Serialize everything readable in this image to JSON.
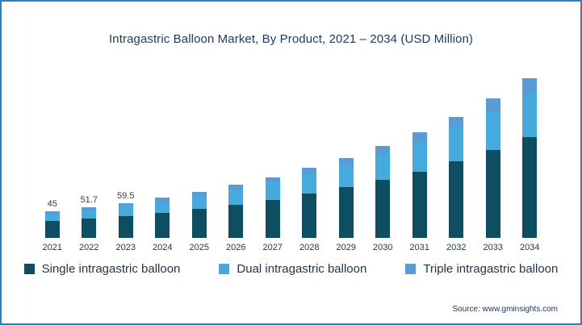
{
  "title": "Intragastric Balloon Market, By Product, 2021 – 2034 (USD Million)",
  "source": "Source: www.gminsights.com",
  "frame": {
    "border_color": "#2a83b8",
    "background": "#ffffff"
  },
  "chart_data": {
    "type": "bar",
    "stacked": true,
    "title": "Intragastric Balloon Market, By Product, 2021 – 2034 (USD Million)",
    "xlabel": "",
    "ylabel": "USD Million",
    "ylim": [
      0,
      280
    ],
    "grid": false,
    "legend_position": "bottom",
    "categories": [
      "2021",
      "2022",
      "2023",
      "2024",
      "2025",
      "2026",
      "2027",
      "2028",
      "2029",
      "2030",
      "2031",
      "2032",
      "2033",
      "2034"
    ],
    "totals": [
      45,
      51.7,
      59.5,
      68.3,
      78.4,
      90.0,
      103.3,
      118.6,
      136.1,
      156.2,
      179.3,
      205.8,
      236.2,
      271.1
    ],
    "data_labels": {
      "2021": "45",
      "2022": "51.7",
      "2023": "59.5"
    },
    "series": [
      {
        "key": "single",
        "name": "Single intragastric balloon",
        "color": "#0d4e63",
        "values": [
          28.4,
          32.6,
          37.5,
          43.0,
          49.4,
          56.7,
          65.1,
          74.7,
          85.7,
          98.4,
          113.0,
          129.7,
          148.8,
          170.8
        ]
      },
      {
        "key": "dual",
        "name": "Dual intragastric balloon",
        "color": "#45aadd",
        "values": [
          12.6,
          14.5,
          16.7,
          19.1,
          22.0,
          25.2,
          28.9,
          33.2,
          38.1,
          43.7,
          50.2,
          57.6,
          66.1,
          75.9
        ]
      },
      {
        "key": "triple",
        "name": "Triple intragastric balloon",
        "color": "#5b9bd5",
        "values": [
          4.0,
          4.6,
          5.3,
          6.2,
          7.0,
          8.1,
          9.3,
          10.7,
          12.3,
          14.1,
          16.1,
          18.5,
          21.3,
          24.4
        ]
      }
    ]
  },
  "legend": {
    "items": [
      {
        "label": "Single intragastric balloon",
        "color": "#0d4e63"
      },
      {
        "label": "Dual intragastric balloon",
        "color": "#45aadd"
      },
      {
        "label": "Triple intragastric balloon",
        "color": "#5b9bd5"
      }
    ]
  }
}
